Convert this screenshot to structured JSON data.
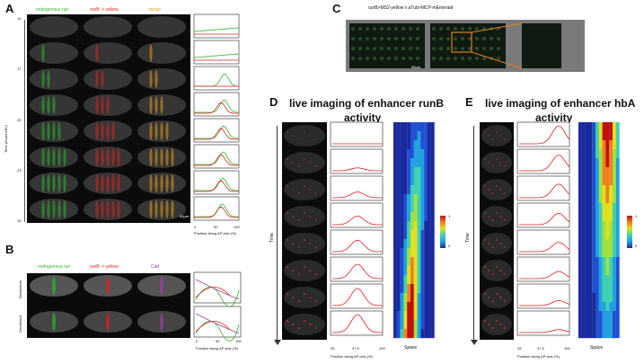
{
  "panels": {
    "A": "A",
    "B": "B",
    "C": "C",
    "D": "D",
    "E": "E"
  },
  "panelA": {
    "channel_labels": [
      "endogenous  run",
      "runB -> yellow",
      "merge"
    ],
    "y_axis_label": "Time (hours AEL)",
    "time_ticks": [
      "14",
      "17",
      "20",
      "23",
      "26"
    ],
    "intensity_label": "Intensity",
    "x_axis_label": "Position along AP axis (%)",
    "x_ticks": [
      "0",
      "50",
      "100"
    ],
    "scale_bar": "50µm"
  },
  "panelB": {
    "channel_labels": [
      "endogenous  run",
      "runB -> yellow",
      "Cad"
    ],
    "row_labels": [
      "Blastoderm",
      "Germband"
    ],
    "intensity_label": "Intensity",
    "x_axis_label": "Position along AP axis (%)",
    "x_ticks": [
      "0",
      "50",
      "100"
    ],
    "scale_bar": "50µm"
  },
  "panelC": {
    "title": "runB>MS2-yellow x aTub>MCP-mEmerald",
    "scale_bar": "50µm"
  },
  "panelD": {
    "title_line1": "live imaging of enhancer runB",
    "title_line2": "activity",
    "time_label": "Time",
    "x_axis_label": "Position along AP axis (%)",
    "x_ticks": [
      "25",
      "37.5",
      "100"
    ],
    "space_label": "Space",
    "colorbar_max": "1",
    "colorbar_min": "0"
  },
  "panelE": {
    "title_line1": "live imaging of enhancer hbA",
    "title_line2": "activity",
    "time_label": "Time",
    "x_axis_label": "Position along AP axis (%)",
    "x_ticks": [
      "25",
      "37.5",
      "100"
    ],
    "space_label": "Space",
    "colorbar_max": "1",
    "colorbar_min": "0"
  },
  "colors": {
    "endogenous": "#2bb52b",
    "reporter": "#e02020",
    "merge": "#e59a1a",
    "cad": "#a040a0"
  }
}
